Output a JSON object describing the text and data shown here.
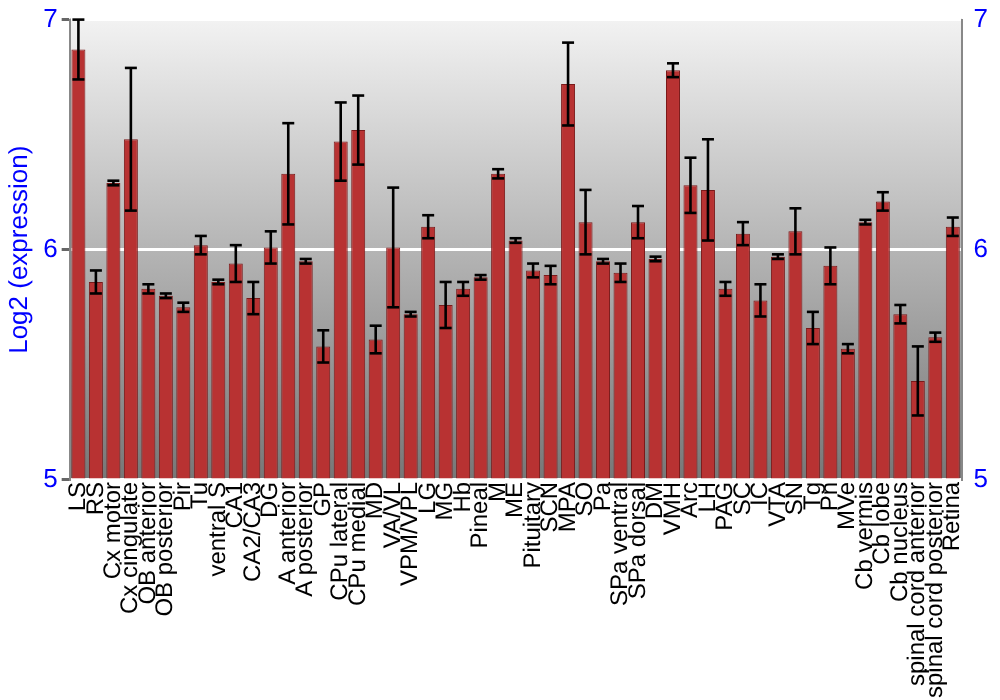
{
  "chart_data": {
    "type": "bar",
    "ylabel": "Log2 (expression)",
    "categories": [
      "LS",
      "RS",
      "Cx motor",
      "Cx cingulate",
      "OB anterior",
      "OB posterior",
      "Pir",
      "Tu",
      "ventral S",
      "CA1",
      "CA2/CA3",
      "DG",
      "A anterior",
      "A posterior",
      "GP",
      "CPu lateral",
      "CPu medial",
      "MD",
      "VA/VL",
      "VPM/VPL",
      "LG",
      "MG",
      "Hb",
      "Pineal",
      "M",
      "ME",
      "Pituitary",
      "SCN",
      "MPA",
      "SO",
      "Pa",
      "SPa ventral",
      "SPa dorsal",
      "DM",
      "VMH",
      "Arc",
      "LH",
      "PAG",
      "SC",
      "IC",
      "VTA",
      "SN",
      "Tg",
      "Pn",
      "MVe",
      "Cb vermis",
      "Cb lobe",
      "Cb nucleus",
      "spinal cord anterior",
      "spinal cord posterior",
      "Retina"
    ],
    "values": [
      6.87,
      5.86,
      6.29,
      6.48,
      5.83,
      5.8,
      5.75,
      6.02,
      5.86,
      5.94,
      5.79,
      6.01,
      6.33,
      5.95,
      5.58,
      6.47,
      6.52,
      5.61,
      6.01,
      5.72,
      6.1,
      5.76,
      5.83,
      5.88,
      6.33,
      6.04,
      5.91,
      5.89,
      6.72,
      6.12,
      5.95,
      5.9,
      6.12,
      5.96,
      6.78,
      6.28,
      6.26,
      5.83,
      6.07,
      5.78,
      5.97,
      6.08,
      5.66,
      5.93,
      5.57,
      6.12,
      6.21,
      5.72,
      5.43,
      5.62,
      6.1
    ],
    "errors": [
      0.13,
      0.05,
      0.01,
      0.31,
      0.02,
      0.01,
      0.02,
      0.04,
      0.01,
      0.08,
      0.07,
      0.07,
      0.22,
      0.01,
      0.07,
      0.17,
      0.15,
      0.06,
      0.26,
      0.01,
      0.05,
      0.1,
      0.03,
      0.01,
      0.02,
      0.01,
      0.03,
      0.04,
      0.18,
      0.14,
      0.01,
      0.04,
      0.07,
      0.01,
      0.03,
      0.12,
      0.22,
      0.03,
      0.05,
      0.07,
      0.01,
      0.1,
      0.07,
      0.08,
      0.02,
      0.01,
      0.04,
      0.04,
      0.15,
      0.02,
      0.04
    ],
    "color": "#b83232",
    "ylim": [
      5,
      7
    ],
    "yticks": [
      5,
      6,
      7
    ],
    "y2lim": [
      5,
      7
    ],
    "y2ticks": [
      5,
      6,
      7
    ],
    "grid": "y",
    "legend": false
  }
}
